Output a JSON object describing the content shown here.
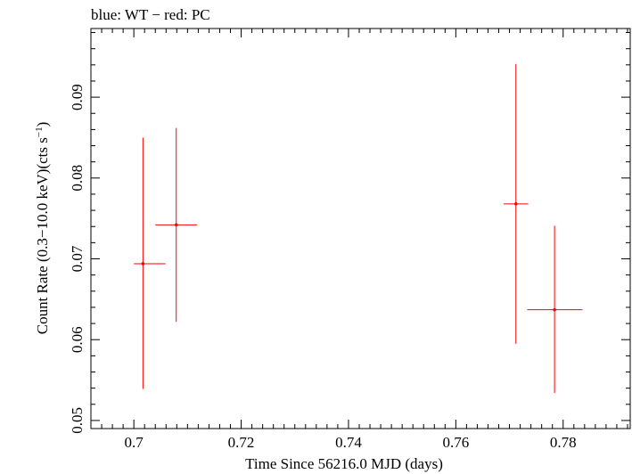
{
  "chart_data": {
    "type": "scatter",
    "title": "blue: WT − red: PC",
    "xlabel": "Time Since 56216.0 MJD (days)",
    "ylabel_main": "Count Rate (0.3−10.0 keV)(cts s",
    "ylabel_sup": "−1",
    "ylabel_close": ")",
    "xlim": [
      0.692,
      0.7925
    ],
    "ylim": [
      0.049,
      0.0985
    ],
    "x_major_ticks": [
      0.7,
      0.72,
      0.74,
      0.76,
      0.78
    ],
    "x_tick_labels": [
      "0.7",
      "0.72",
      "0.74",
      "0.76",
      "0.78"
    ],
    "x_minor_step": 0.002,
    "y_major_ticks": [
      0.05,
      0.06,
      0.07,
      0.08,
      0.09
    ],
    "y_tick_labels": [
      "0.05",
      "0.06",
      "0.07",
      "0.08",
      "0.09"
    ],
    "y_minor_step": 0.002,
    "grid": false,
    "series": [
      {
        "name": "PC",
        "color": "#ff0000",
        "points": [
          {
            "x": 0.7017,
            "xerr_lo": 0.0017,
            "xerr_hi": 0.0042,
            "y": 0.0694,
            "yerr_lo": 0.0155,
            "yerr_hi": 0.0156
          },
          {
            "x": 0.7079,
            "xerr_lo": 0.0039,
            "xerr_hi": 0.0039,
            "y": 0.0742,
            "yerr_lo": 0.012,
            "yerr_hi": 0.012
          },
          {
            "x": 0.7712,
            "xerr_lo": 0.0023,
            "xerr_hi": 0.0023,
            "y": 0.0768,
            "yerr_lo": 0.0173,
            "yerr_hi": 0.0173
          },
          {
            "x": 0.7784,
            "xerr_lo": 0.0051,
            "xerr_hi": 0.0052,
            "y": 0.0637,
            "yerr_lo": 0.0103,
            "yerr_hi": 0.0104
          }
        ]
      }
    ]
  }
}
